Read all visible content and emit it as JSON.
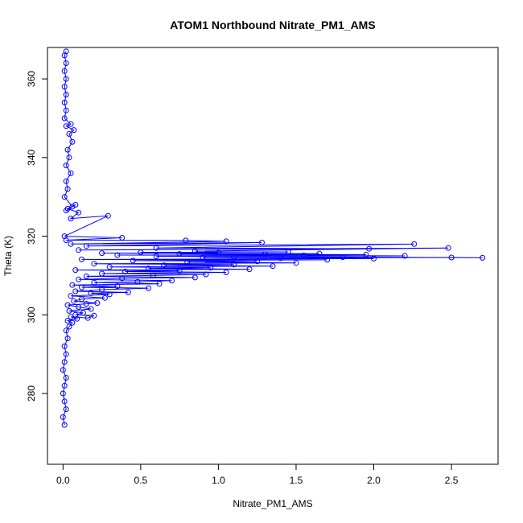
{
  "chart_data": {
    "type": "scatter",
    "title": "ATOM1 Northbound Nitrate_PM1_AMS",
    "xlabel": "Nitrate_PM1_AMS",
    "ylabel": "Theta (K)",
    "xlim": [
      -0.1,
      2.8
    ],
    "ylim": [
      262,
      368
    ],
    "x_ticks": [
      0.0,
      0.5,
      1.0,
      1.5,
      2.0,
      2.5
    ],
    "x_tick_labels": [
      "0.0",
      "0.5",
      "1.0",
      "1.5",
      "2.0",
      "2.5"
    ],
    "y_ticks": [
      280,
      300,
      320,
      340,
      360
    ],
    "y_tick_labels": [
      "280",
      "300",
      "320",
      "340",
      "360"
    ],
    "grid": false,
    "legend": "none",
    "marker": "open-circle",
    "connected": true,
    "series_color": "#0000ff",
    "series": [
      {
        "points": [
          [
            0.01,
            272
          ],
          [
            0.0,
            274
          ],
          [
            0.02,
            276
          ],
          [
            0.01,
            278
          ],
          [
            0.0,
            280
          ],
          [
            0.01,
            282
          ],
          [
            0.02,
            284
          ],
          [
            0.0,
            286
          ],
          [
            0.01,
            288
          ],
          [
            0.02,
            290
          ],
          [
            0.01,
            292
          ],
          [
            0.03,
            294
          ],
          [
            0.02,
            296
          ],
          [
            0.04,
            297
          ],
          [
            0.06,
            298
          ],
          [
            0.03,
            298.5
          ],
          [
            0.09,
            299
          ],
          [
            0.05,
            299.5
          ],
          [
            0.16,
            299.2
          ],
          [
            0.2,
            299.8
          ],
          [
            0.08,
            300
          ],
          [
            0.13,
            300.5
          ],
          [
            0.04,
            301
          ],
          [
            0.18,
            301.5
          ],
          [
            0.1,
            302
          ],
          [
            0.03,
            302.5
          ],
          [
            0.15,
            302.8
          ],
          [
            0.22,
            303
          ],
          [
            0.07,
            303.5
          ],
          [
            0.12,
            304
          ],
          [
            0.27,
            304.3
          ],
          [
            0.05,
            304.8
          ],
          [
            0.3,
            305.2
          ],
          [
            0.18,
            305.5
          ],
          [
            0.42,
            305.7
          ],
          [
            0.08,
            306
          ],
          [
            0.25,
            306.4
          ],
          [
            0.55,
            306.8
          ],
          [
            0.12,
            307
          ],
          [
            0.35,
            307.3
          ],
          [
            0.06,
            307.6
          ],
          [
            0.62,
            307.9
          ],
          [
            0.2,
            308.2
          ],
          [
            0.48,
            308.4
          ],
          [
            0.7,
            308.7
          ],
          [
            0.1,
            309
          ],
          [
            0.38,
            309.3
          ],
          [
            0.85,
            309.5
          ],
          [
            0.15,
            309.8
          ],
          [
            0.58,
            310
          ],
          [
            0.92,
            310.3
          ],
          [
            0.25,
            310.5
          ],
          [
            1.05,
            310.8
          ],
          [
            0.4,
            311
          ],
          [
            0.75,
            311.2
          ],
          [
            0.08,
            311.4
          ],
          [
            1.2,
            311.6
          ],
          [
            0.55,
            311.8
          ],
          [
            0.95,
            312
          ],
          [
            0.3,
            312.2
          ],
          [
            1.35,
            312.4
          ],
          [
            0.65,
            312.6
          ],
          [
            1.1,
            312.8
          ],
          [
            0.2,
            313
          ],
          [
            1.5,
            313.2
          ],
          [
            0.8,
            313.4
          ],
          [
            1.25,
            313.6
          ],
          [
            0.45,
            313.8
          ],
          [
            1.7,
            314
          ],
          [
            0.12,
            314.1
          ],
          [
            2.0,
            314.3
          ],
          [
            1.4,
            314.4
          ],
          [
            0.9,
            314.5
          ],
          [
            2.5,
            314.6
          ],
          [
            2.7,
            314.5
          ],
          [
            1.8,
            314.7
          ],
          [
            1.1,
            314.8
          ],
          [
            0.6,
            314.9
          ],
          [
            2.2,
            315
          ],
          [
            1.55,
            315.1
          ],
          [
            0.35,
            315.2
          ],
          [
            1.95,
            315.3
          ],
          [
            1.3,
            315.4
          ],
          [
            0.75,
            315.5
          ],
          [
            1.65,
            315.6
          ],
          [
            0.25,
            315.7
          ],
          [
            1.0,
            315.8
          ],
          [
            0.5,
            315.9
          ],
          [
            1.45,
            316
          ],
          [
            0.85,
            316.2
          ],
          [
            2.48,
            317
          ],
          [
            0.1,
            316.5
          ],
          [
            1.97,
            316.8
          ],
          [
            0.6,
            317
          ],
          [
            2.26,
            318
          ],
          [
            0.15,
            317.5
          ],
          [
            1.28,
            318.4
          ],
          [
            0.05,
            318
          ],
          [
            1.05,
            318.7
          ],
          [
            0.79,
            318.9
          ],
          [
            0.02,
            319
          ],
          [
            0.38,
            319.6
          ],
          [
            0.01,
            320
          ],
          [
            0.29,
            325.2
          ],
          [
            0.05,
            324.5
          ],
          [
            0.1,
            326
          ],
          [
            0.03,
            327
          ],
          [
            0.08,
            328
          ],
          [
            0.02,
            326.5
          ],
          [
            0.06,
            327.5
          ],
          [
            0.01,
            330
          ],
          [
            0.03,
            332
          ],
          [
            0.02,
            334
          ],
          [
            0.05,
            336
          ],
          [
            0.02,
            338
          ],
          [
            0.04,
            340
          ],
          [
            0.03,
            342
          ],
          [
            0.06,
            344
          ],
          [
            0.04,
            346
          ],
          [
            0.07,
            347
          ],
          [
            0.02,
            348
          ],
          [
            0.05,
            348.5
          ],
          [
            0.01,
            350
          ],
          [
            0.02,
            352
          ],
          [
            0.01,
            354
          ],
          [
            0.02,
            356
          ],
          [
            0.01,
            358
          ],
          [
            0.02,
            360
          ],
          [
            0.01,
            362
          ],
          [
            0.02,
            364
          ],
          [
            0.01,
            366
          ],
          [
            0.02,
            367
          ]
        ]
      }
    ]
  }
}
